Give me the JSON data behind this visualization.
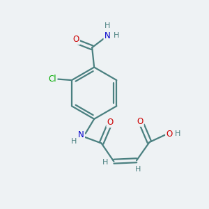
{
  "bg_color": "#eef2f4",
  "bond_color": "#4a8080",
  "atom_colors": {
    "O": "#cc0000",
    "N": "#0000cc",
    "Cl": "#00aa00",
    "H": "#4a8080",
    "C": "#4a8080"
  }
}
